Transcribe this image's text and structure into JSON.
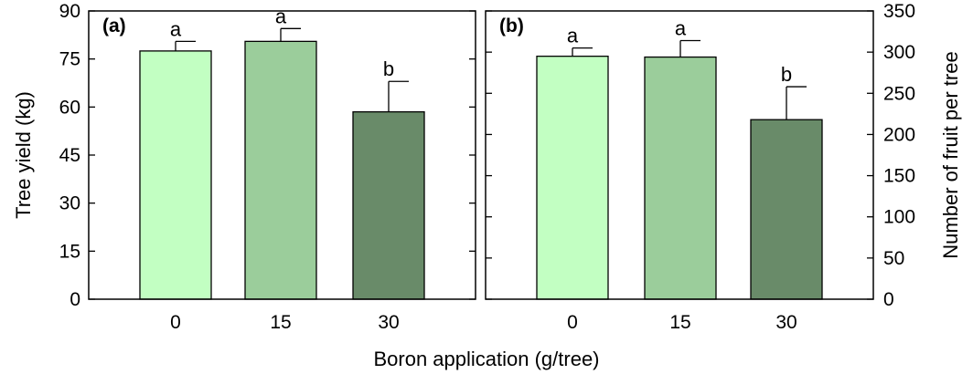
{
  "chart_data": [
    {
      "type": "bar",
      "panel_label": "(a)",
      "categories": [
        "0",
        "15",
        "30"
      ],
      "values": [
        77.5,
        80.5,
        58.5
      ],
      "errors": [
        3.0,
        4.0,
        9.5
      ],
      "letters": [
        "a",
        "a",
        "b"
      ],
      "colors": [
        "#c2ffc2",
        "#9bcd9b",
        "#698b69"
      ],
      "ylabel": "Tree yield (kg)",
      "ylim": [
        0,
        90
      ],
      "yticks": [
        0,
        15,
        30,
        45,
        60,
        75,
        90
      ],
      "yaxis_side": "left"
    },
    {
      "type": "bar",
      "panel_label": "(b)",
      "categories": [
        "0",
        "15",
        "30"
      ],
      "values": [
        295,
        294,
        218
      ],
      "errors": [
        10,
        20,
        40
      ],
      "letters": [
        "a",
        "a",
        "b"
      ],
      "colors": [
        "#c2ffc2",
        "#9bcd9b",
        "#698b69"
      ],
      "ylabel": "Number of fruit per tree",
      "ylim": [
        0,
        350
      ],
      "yticks": [
        0,
        50,
        100,
        150,
        200,
        250,
        300,
        350
      ],
      "yaxis_side": "right"
    }
  ],
  "xlabel": "Boron application (g/tree)"
}
